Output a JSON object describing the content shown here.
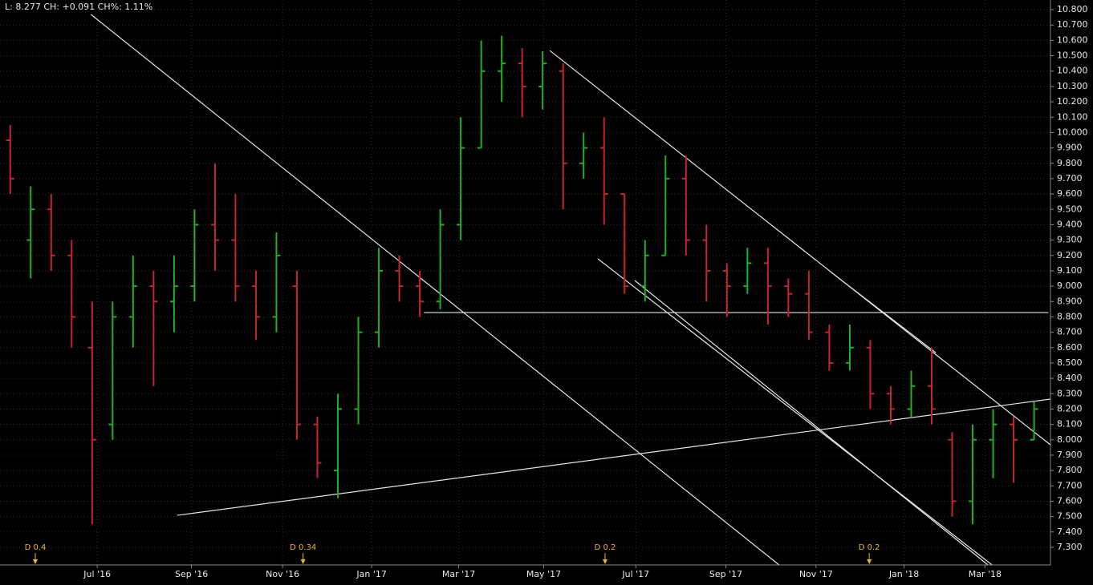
{
  "chart_data": {
    "type": "ohlc",
    "info": "L: 8.277 CH: +0.091 CH%: 1.11%",
    "up_color": "#22b022",
    "down_color": "#c4262b",
    "grid": true,
    "x": [
      1,
      3,
      5,
      7,
      9,
      11,
      13,
      15,
      17,
      19,
      21,
      23,
      25,
      27,
      29,
      31,
      33,
      35,
      37,
      39,
      41,
      43,
      45,
      47,
      49,
      51,
      53,
      55,
      57,
      59,
      61,
      63,
      65,
      67,
      69,
      71,
      73,
      75,
      77,
      79,
      81,
      83,
      85,
      87,
      89,
      91,
      93,
      95,
      97,
      99,
      101
    ],
    "open": [
      9.95,
      9.3,
      9.5,
      9.2,
      8.6,
      8.1,
      8.8,
      9.0,
      8.9,
      9.0,
      9.4,
      9.3,
      9.0,
      8.8,
      9.0,
      8.1,
      7.8,
      8.2,
      8.7,
      9.1,
      9.0,
      8.9,
      9.4,
      9.9,
      10.4,
      10.45,
      10.3,
      10.4,
      9.8,
      9.9,
      9.6,
      9.0,
      9.2,
      9.7,
      9.3,
      9.1,
      9.0,
      9.15,
      9.0,
      8.95,
      8.7,
      8.5,
      8.6,
      8.3,
      8.2,
      8.35,
      8.0,
      7.6,
      8.0,
      8.1,
      8.0
    ],
    "high": [
      10.05,
      9.65,
      9.6,
      9.3,
      8.9,
      8.9,
      9.2,
      9.1,
      9.2,
      9.5,
      9.8,
      9.6,
      9.1,
      9.35,
      9.1,
      8.15,
      8.3,
      8.8,
      9.25,
      9.2,
      9.1,
      9.5,
      10.1,
      10.6,
      10.63,
      10.55,
      10.53,
      10.45,
      10.0,
      10.1,
      9.6,
      9.3,
      9.85,
      9.85,
      9.4,
      9.15,
      9.25,
      9.25,
      9.05,
      9.1,
      8.75,
      8.75,
      8.65,
      8.35,
      8.45,
      8.6,
      8.05,
      8.1,
      8.2,
      8.15,
      8.25
    ],
    "low": [
      9.6,
      9.05,
      9.1,
      8.6,
      7.45,
      8.0,
      8.6,
      8.35,
      8.7,
      8.9,
      9.1,
      8.9,
      8.65,
      8.7,
      8.0,
      7.75,
      7.62,
      8.1,
      8.6,
      8.9,
      8.8,
      8.85,
      9.3,
      9.9,
      10.2,
      10.1,
      10.15,
      9.5,
      9.7,
      9.4,
      8.95,
      8.9,
      9.2,
      9.2,
      8.9,
      8.8,
      8.95,
      8.75,
      8.8,
      8.65,
      8.45,
      8.45,
      8.2,
      8.1,
      8.15,
      8.1,
      7.5,
      7.45,
      7.75,
      7.72,
      8.0
    ],
    "close": [
      9.7,
      9.5,
      9.2,
      8.8,
      8.0,
      8.8,
      9.0,
      8.9,
      9.0,
      9.4,
      9.3,
      9.0,
      8.8,
      9.2,
      8.1,
      7.85,
      8.2,
      8.7,
      9.1,
      9.0,
      8.9,
      9.4,
      9.9,
      10.4,
      10.45,
      10.3,
      10.45,
      9.8,
      9.9,
      9.6,
      9.0,
      9.2,
      9.7,
      9.3,
      9.1,
      9.0,
      9.15,
      9.0,
      8.95,
      8.7,
      8.5,
      8.6,
      8.3,
      8.2,
      8.35,
      8.2,
      7.6,
      8.0,
      8.1,
      8.0,
      8.2
    ],
    "xlim": [
      0,
      102.6
    ],
    "ylim": [
      7.185,
      10.863
    ],
    "xticks": [
      {
        "value": 9.5,
        "label": "Jul '16"
      },
      {
        "value": 18.7,
        "label": "Sep '16"
      },
      {
        "value": 27.6,
        "label": "Nov '16"
      },
      {
        "value": 36.3,
        "label": "Jan '17"
      },
      {
        "value": 44.8,
        "label": "Mar '17"
      },
      {
        "value": 53.1,
        "label": "May '17"
      },
      {
        "value": 62.1,
        "label": "Jul '17"
      },
      {
        "value": 70.9,
        "label": "Sep '17"
      },
      {
        "value": 79.7,
        "label": "Nov '17"
      },
      {
        "value": 88.3,
        "label": "Jan '18"
      },
      {
        "value": 96.2,
        "label": "Mar '18"
      }
    ],
    "yticks": [
      {
        "value": 10.8,
        "label": "10.800"
      },
      {
        "value": 10.7,
        "label": "10.700"
      },
      {
        "value": 10.6,
        "label": "10.600"
      },
      {
        "value": 10.5,
        "label": "10.500"
      },
      {
        "value": 10.4,
        "label": "10.400"
      },
      {
        "value": 10.3,
        "label": "10.300"
      },
      {
        "value": 10.2,
        "label": "10.200"
      },
      {
        "value": 10.1,
        "label": "10.100"
      },
      {
        "value": 10.0,
        "label": "10.000"
      },
      {
        "value": 9.9,
        "label": "9.900"
      },
      {
        "value": 9.8,
        "label": "9.800"
      },
      {
        "value": 9.7,
        "label": "9.700"
      },
      {
        "value": 9.6,
        "label": "9.600"
      },
      {
        "value": 9.5,
        "label": "9.500"
      },
      {
        "value": 9.4,
        "label": "9.400"
      },
      {
        "value": 9.3,
        "label": "9.300"
      },
      {
        "value": 9.2,
        "label": "9.200"
      },
      {
        "value": 9.1,
        "label": "9.100"
      },
      {
        "value": 9.0,
        "label": "9.000"
      },
      {
        "value": 8.9,
        "label": "8.900"
      },
      {
        "value": 8.8,
        "label": "8.800"
      },
      {
        "value": 8.7,
        "label": "8.700"
      },
      {
        "value": 8.6,
        "label": "8.600"
      },
      {
        "value": 8.5,
        "label": "8.500"
      },
      {
        "value": 8.4,
        "label": "8.400"
      },
      {
        "value": 8.3,
        "label": "8.300"
      },
      {
        "value": 8.2,
        "label": "8.200"
      },
      {
        "value": 8.1,
        "label": "8.100"
      },
      {
        "value": 8.0,
        "label": "8.000"
      },
      {
        "value": 7.9,
        "label": "7.900"
      },
      {
        "value": 7.8,
        "label": "7.800"
      },
      {
        "value": 7.7,
        "label": "7.700"
      },
      {
        "value": 7.6,
        "label": "7.600"
      },
      {
        "value": 7.5,
        "label": "7.500"
      },
      {
        "value": 7.4,
        "label": "7.400"
      },
      {
        "value": 7.3,
        "label": "7.300"
      }
    ],
    "trendlines": [
      {
        "x": [
          8.6,
          76.1
        ],
        "y": [
          10.784,
          7.185
        ]
      },
      {
        "x": [
          53.7,
          102.6
        ],
        "y": [
          10.534,
          7.967
        ]
      },
      {
        "x": [
          58.4,
          96.9
        ],
        "y": [
          9.178,
          7.185
        ]
      },
      {
        "x": [
          62.0,
          96.5
        ],
        "y": [
          9.037,
          7.185
        ]
      },
      {
        "x": [
          41.4,
          102.4
        ],
        "y": [
          8.828,
          8.828
        ]
      },
      {
        "x": [
          17.3,
          102.6
        ],
        "y": [
          7.508,
          8.265
        ]
      },
      {
        "x": [
          81.2,
          91.4
        ],
        "y": [
          9.089,
          8.567
        ]
      }
    ],
    "events": [
      {
        "x": 3.45,
        "label": "D 0.4"
      },
      {
        "x": 29.6,
        "label": "D 0.34"
      },
      {
        "x": 59.1,
        "label": "D 0.2"
      },
      {
        "x": 84.9,
        "label": "D 0.2"
      }
    ]
  }
}
